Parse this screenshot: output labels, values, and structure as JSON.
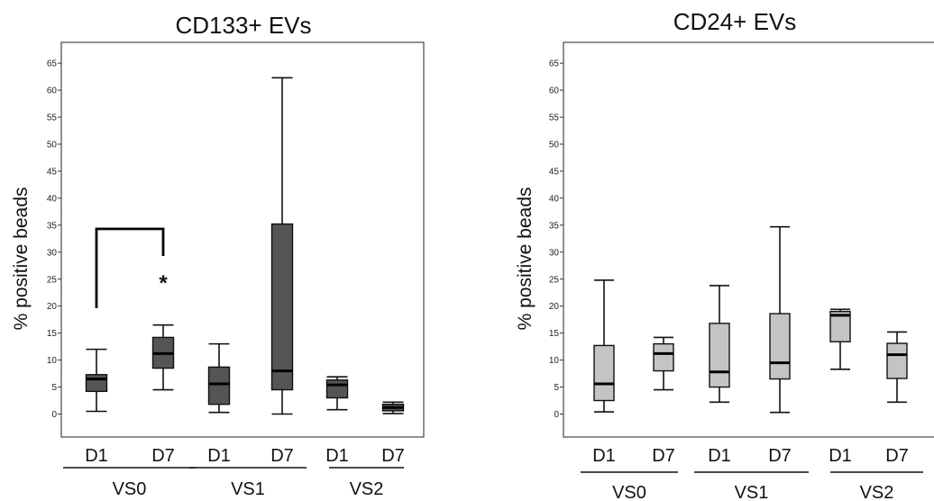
{
  "chart_data": [
    {
      "type": "boxplot",
      "title": "CD133+ EVs",
      "ylabel": "% positive beads",
      "xlabel": "",
      "ylim": [
        -3,
        68
      ],
      "yticks": [
        0,
        5,
        10,
        15,
        20,
        25,
        30,
        35,
        40,
        45,
        50,
        55,
        60,
        65
      ],
      "groups": [
        "VS0",
        "VS1",
        "VS2"
      ],
      "box_color": "#555555",
      "categories": [
        {
          "label": "D1",
          "group": "VS0",
          "min": 0.5,
          "q1": 4.2,
          "median": 6.5,
          "q3": 7.3,
          "max": 12.0
        },
        {
          "label": "D7",
          "group": "VS0",
          "min": 4.5,
          "q1": 8.5,
          "median": 11.2,
          "q3": 14.2,
          "max": 16.5
        },
        {
          "label": "D1",
          "group": "VS1",
          "min": 0.3,
          "q1": 1.8,
          "median": 5.6,
          "q3": 8.7,
          "max": 13.0
        },
        {
          "label": "D7",
          "group": "VS1",
          "min": 0.0,
          "q1": 4.5,
          "median": 8.0,
          "q3": 35.2,
          "max": 62.3
        },
        {
          "label": "D1",
          "group": "VS2",
          "min": 0.8,
          "q1": 3.0,
          "median": 5.4,
          "q3": 6.3,
          "max": 6.9
        },
        {
          "label": "D7",
          "group": "VS2",
          "min": 0.1,
          "q1": 0.6,
          "median": 1.2,
          "q3": 1.8,
          "max": 2.2
        }
      ],
      "significance": {
        "from": 0,
        "to": 1,
        "label": "*"
      }
    },
    {
      "type": "boxplot",
      "title": "CD24+ EVs",
      "ylabel": "% positive beads",
      "xlabel": "",
      "ylim": [
        -3,
        68
      ],
      "yticks": [
        0,
        5,
        10,
        15,
        20,
        25,
        30,
        35,
        40,
        45,
        50,
        55,
        60,
        65
      ],
      "groups": [
        "VS0",
        "VS1",
        "VS2"
      ],
      "box_color": "#c4c4c4",
      "categories": [
        {
          "label": "D1",
          "group": "VS0",
          "min": 0.4,
          "q1": 2.5,
          "median": 5.6,
          "q3": 12.7,
          "max": 24.8
        },
        {
          "label": "D7",
          "group": "VS0",
          "min": 4.5,
          "q1": 8.0,
          "median": 11.2,
          "q3": 13.0,
          "max": 14.2
        },
        {
          "label": "D1",
          "group": "VS1",
          "min": 2.2,
          "q1": 5.0,
          "median": 7.8,
          "q3": 16.8,
          "max": 23.8
        },
        {
          "label": "D7",
          "group": "VS1",
          "min": 0.3,
          "q1": 6.5,
          "median": 9.5,
          "q3": 18.6,
          "max": 34.7
        },
        {
          "label": "D1",
          "group": "VS2",
          "min": 8.3,
          "q1": 13.4,
          "median": 18.3,
          "q3": 19.0,
          "max": 19.4
        },
        {
          "label": "D7",
          "group": "VS2",
          "min": 2.2,
          "q1": 6.6,
          "median": 11.0,
          "q3": 13.1,
          "max": 15.2
        }
      ]
    }
  ]
}
